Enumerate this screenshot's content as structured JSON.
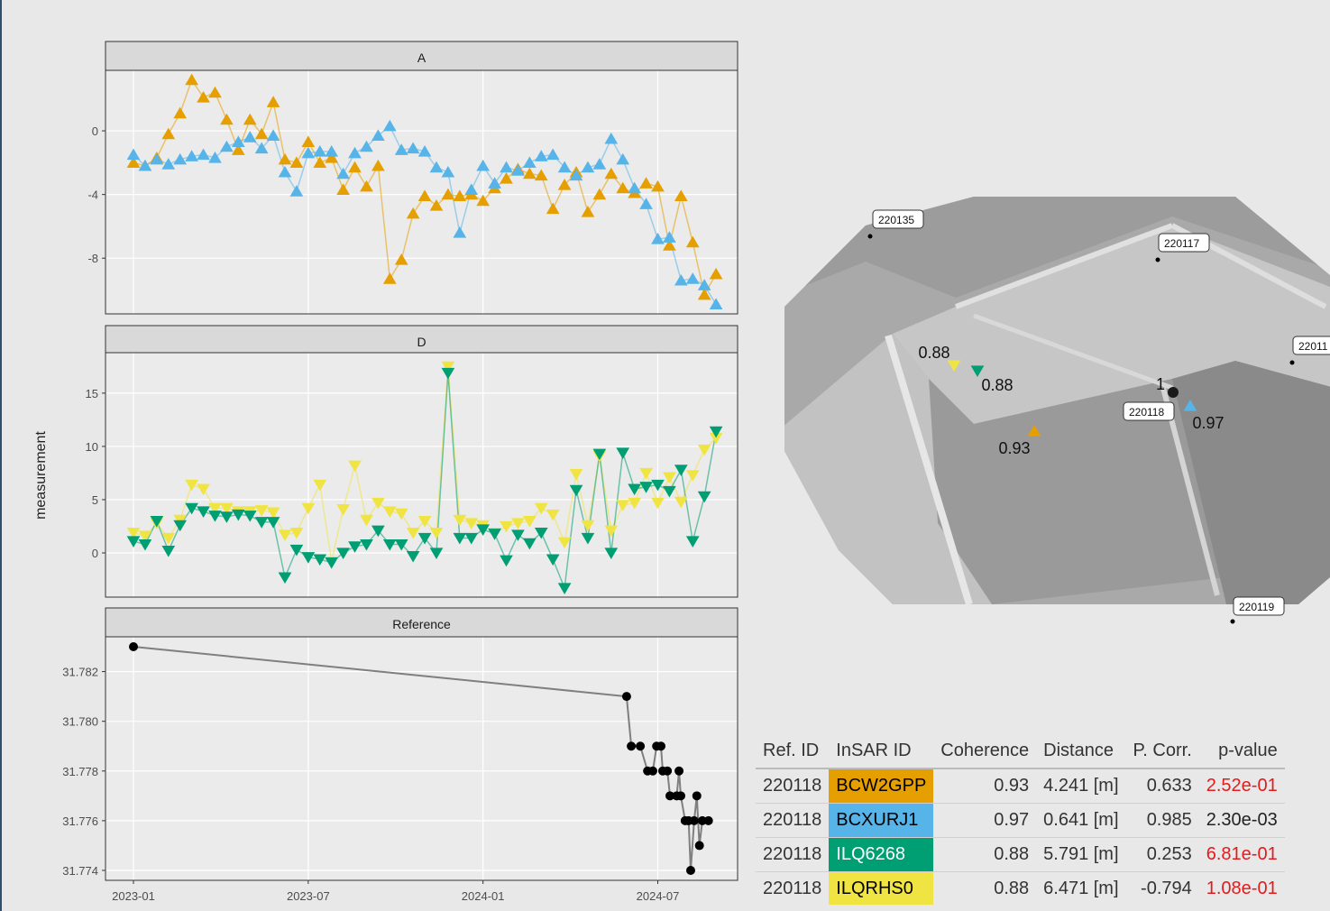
{
  "shared_ylabel": "measurement",
  "chart_data": [
    {
      "type": "line",
      "title": "A",
      "marker": "triangle-up",
      "grid": true,
      "x": [
        0,
        0.4,
        0.8,
        1.2,
        1.6,
        2.0,
        2.4,
        2.8,
        3.2,
        3.6,
        4.0,
        4.4,
        4.8,
        5.2,
        5.6,
        6.0,
        6.4,
        6.8,
        7.2,
        7.6,
        8.0,
        8.4,
        8.8,
        9.2,
        9.6,
        10.0,
        10.4,
        10.8,
        11.2,
        11.6,
        12.0,
        12.4,
        12.8,
        13.2,
        13.6,
        14.0,
        14.4,
        14.8,
        15.2,
        15.6,
        16.0,
        16.4,
        16.8,
        17.2,
        17.6,
        18.0,
        18.4,
        18.8,
        19.2,
        19.6,
        20.0
      ],
      "xlim": [
        -0.96,
        20.74
      ],
      "xticks": [
        0,
        6,
        12,
        18
      ],
      "ylim": [
        -11.5,
        3.8
      ],
      "yticks": [
        0,
        -4,
        -8
      ],
      "series": [
        {
          "color": "#E69F00",
          "values": [
            -2.0,
            -2.2,
            -1.7,
            -0.2,
            1.1,
            3.2,
            2.1,
            2.4,
            0.7,
            -1.2,
            0.7,
            -0.2,
            1.8,
            -1.8,
            -2.0,
            -0.7,
            -2.0,
            -1.7,
            -3.7,
            -2.3,
            -3.5,
            -2.2,
            -9.3,
            -8.1,
            -5.2,
            -4.1,
            -4.7,
            -4.0,
            -4.1,
            -4.0,
            -4.4,
            -3.6,
            -3.0,
            -2.4,
            -2.7,
            -2.8,
            -4.9,
            -3.4,
            -2.6,
            -5.1,
            -4.0,
            -2.7,
            -3.6,
            -3.9,
            -3.3,
            -3.5,
            -7.2,
            -4.1,
            -7.0,
            -10.3,
            -9.0
          ]
        },
        {
          "color": "#56B4E9",
          "values": [
            -1.5,
            -2.2,
            -1.8,
            -2.1,
            -1.8,
            -1.6,
            -1.5,
            -1.7,
            -1.0,
            -0.7,
            -0.4,
            -1.1,
            -0.3,
            -2.6,
            -3.8,
            -1.4,
            -1.3,
            -1.3,
            -2.7,
            -1.4,
            -1.0,
            -0.3,
            0.3,
            -1.2,
            -1.1,
            -1.3,
            -2.3,
            -2.6,
            -6.4,
            -3.7,
            -2.2,
            -3.3,
            -2.3,
            -2.5,
            -2.0,
            -1.6,
            -1.5,
            -2.3,
            -2.8,
            -2.3,
            -2.1,
            -0.5,
            -1.8,
            -3.6,
            -4.6,
            -6.8,
            -6.7,
            -9.4,
            -9.3,
            -9.7,
            -10.9
          ]
        }
      ]
    },
    {
      "type": "line",
      "title": "D",
      "marker": "triangle-down",
      "grid": true,
      "x": [
        0,
        0.4,
        0.8,
        1.2,
        1.6,
        2.0,
        2.4,
        2.8,
        3.2,
        3.6,
        4.0,
        4.4,
        4.8,
        5.2,
        5.6,
        6.0,
        6.4,
        6.8,
        7.2,
        7.6,
        8.0,
        8.4,
        8.8,
        9.2,
        9.6,
        10.0,
        10.4,
        10.8,
        11.2,
        11.6,
        12.0,
        12.4,
        12.8,
        13.2,
        13.6,
        14.0,
        14.4,
        14.8,
        15.2,
        15.6,
        16.0,
        16.4,
        16.8,
        17.2,
        17.6,
        18.0,
        18.4,
        18.8,
        19.2,
        19.6,
        20.0
      ],
      "xlim": [
        -0.96,
        20.74
      ],
      "xticks": [
        0,
        6,
        12,
        18
      ],
      "ylim": [
        -4.15,
        18.8
      ],
      "yticks": [
        0,
        5,
        10,
        15
      ],
      "series": [
        {
          "color": "#F0E442",
          "values": [
            1.9,
            1.6,
            2.8,
            1.4,
            3.1,
            6.4,
            6.0,
            4.2,
            4.2,
            3.9,
            3.9,
            4.0,
            3.8,
            1.7,
            1.9,
            4.2,
            6.4,
            -0.8,
            4.1,
            8.2,
            3.1,
            4.7,
            3.9,
            3.7,
            1.9,
            3.0,
            1.9,
            17.5,
            3.1,
            2.8,
            2.6,
            1.9,
            2.5,
            2.8,
            3.0,
            4.2,
            3.6,
            1.0,
            7.4,
            2.6,
            9.1,
            2.1,
            4.5,
            4.7,
            7.5,
            4.7,
            7.1,
            4.8,
            7.3,
            9.7,
            10.8
          ]
        },
        {
          "color": "#009E73",
          "values": [
            1.1,
            0.8,
            3.0,
            0.2,
            2.6,
            4.2,
            3.9,
            3.5,
            3.4,
            3.6,
            3.5,
            2.9,
            2.9,
            -2.3,
            0.3,
            -0.4,
            -0.6,
            -0.9,
            0.0,
            0.6,
            0.8,
            2.1,
            0.8,
            0.8,
            -0.3,
            1.4,
            0.0,
            16.9,
            1.4,
            1.4,
            2.2,
            1.8,
            -0.7,
            1.7,
            0.9,
            1.9,
            -0.6,
            -3.3,
            5.9,
            1.4,
            9.3,
            0.0,
            9.4,
            6.0,
            6.2,
            6.4,
            5.8,
            7.8,
            1.1,
            5.3,
            11.4
          ]
        }
      ]
    },
    {
      "type": "line",
      "title": "Reference",
      "marker": "circle",
      "grid": true,
      "x": [
        0,
        16.93,
        17.09,
        17.4,
        17.65,
        17.83,
        17.96,
        18.11,
        18.17,
        18.33,
        18.42,
        18.65,
        18.73,
        18.79,
        18.94,
        19.06,
        19.13,
        19.25,
        19.34,
        19.43,
        19.53,
        19.74
      ],
      "xlim": [
        -0.96,
        20.74
      ],
      "xticks": [
        {
          "value": 0,
          "label": "2023-01"
        },
        {
          "value": 6,
          "label": "2023-07"
        },
        {
          "value": 12,
          "label": "2024-01"
        },
        {
          "value": 18,
          "label": "2024-07"
        }
      ],
      "ylim": [
        31.7736,
        31.7834
      ],
      "yticks": [
        31.782,
        {
          "value": 31.78,
          "label": "31.780"
        },
        31.778,
        31.776,
        31.774
      ],
      "series": [
        {
          "color": "#000000",
          "line_color": "#7f7f7f",
          "values": [
            31.783,
            31.781,
            31.779,
            31.779,
            31.778,
            31.778,
            31.779,
            31.779,
            31.778,
            31.778,
            31.777,
            31.777,
            31.778,
            31.777,
            31.776,
            31.776,
            31.774,
            31.776,
            31.777,
            31.775,
            31.776,
            31.776
          ]
        }
      ]
    }
  ],
  "map": {
    "stations": [
      "220135",
      "220117",
      "22011",
      "220118",
      "220119"
    ],
    "points": [
      {
        "value": 0.88,
        "color": "#F0E442",
        "marker": "triangle-down"
      },
      {
        "value": 0.88,
        "color": "#009E73",
        "marker": "triangle-down"
      },
      {
        "value": 0.93,
        "color": "#E69F00",
        "marker": "triangle-up"
      },
      {
        "value": 1,
        "color": "#1a1a1a",
        "marker": "circle"
      },
      {
        "value": 0.97,
        "color": "#56B4E9",
        "marker": "triangle-up"
      }
    ]
  },
  "table": {
    "header": [
      "Ref. ID",
      "InSAR ID",
      "Coherence",
      "Distance",
      "P. Corr.",
      "p-value"
    ],
    "rows": [
      [
        "220118",
        "BCW2GPP",
        "0.93",
        "4.241 [m]",
        "0.633",
        "2.52e-01"
      ],
      [
        "220118",
        "BCXURJ1",
        "0.97",
        "0.641 [m]",
        "0.985",
        "2.30e-03"
      ],
      [
        "220118",
        "ILQ6268",
        "0.88",
        "5.791 [m]",
        "0.253",
        "6.81e-01"
      ],
      [
        "220118",
        "ILQRHS0",
        "0.88",
        "6.471 [m]",
        "-0.794",
        "1.08e-01"
      ]
    ],
    "id_colors": [
      "#E69F00",
      "#56B4E9",
      "#009E73",
      "#F0E442"
    ],
    "id_text_colors": [
      "#000000",
      "#000000",
      "#ffffff",
      "#000000"
    ],
    "pvalue_colors": [
      "#e41a1c",
      "#222222",
      "#e41a1c",
      "#e41a1c"
    ]
  }
}
